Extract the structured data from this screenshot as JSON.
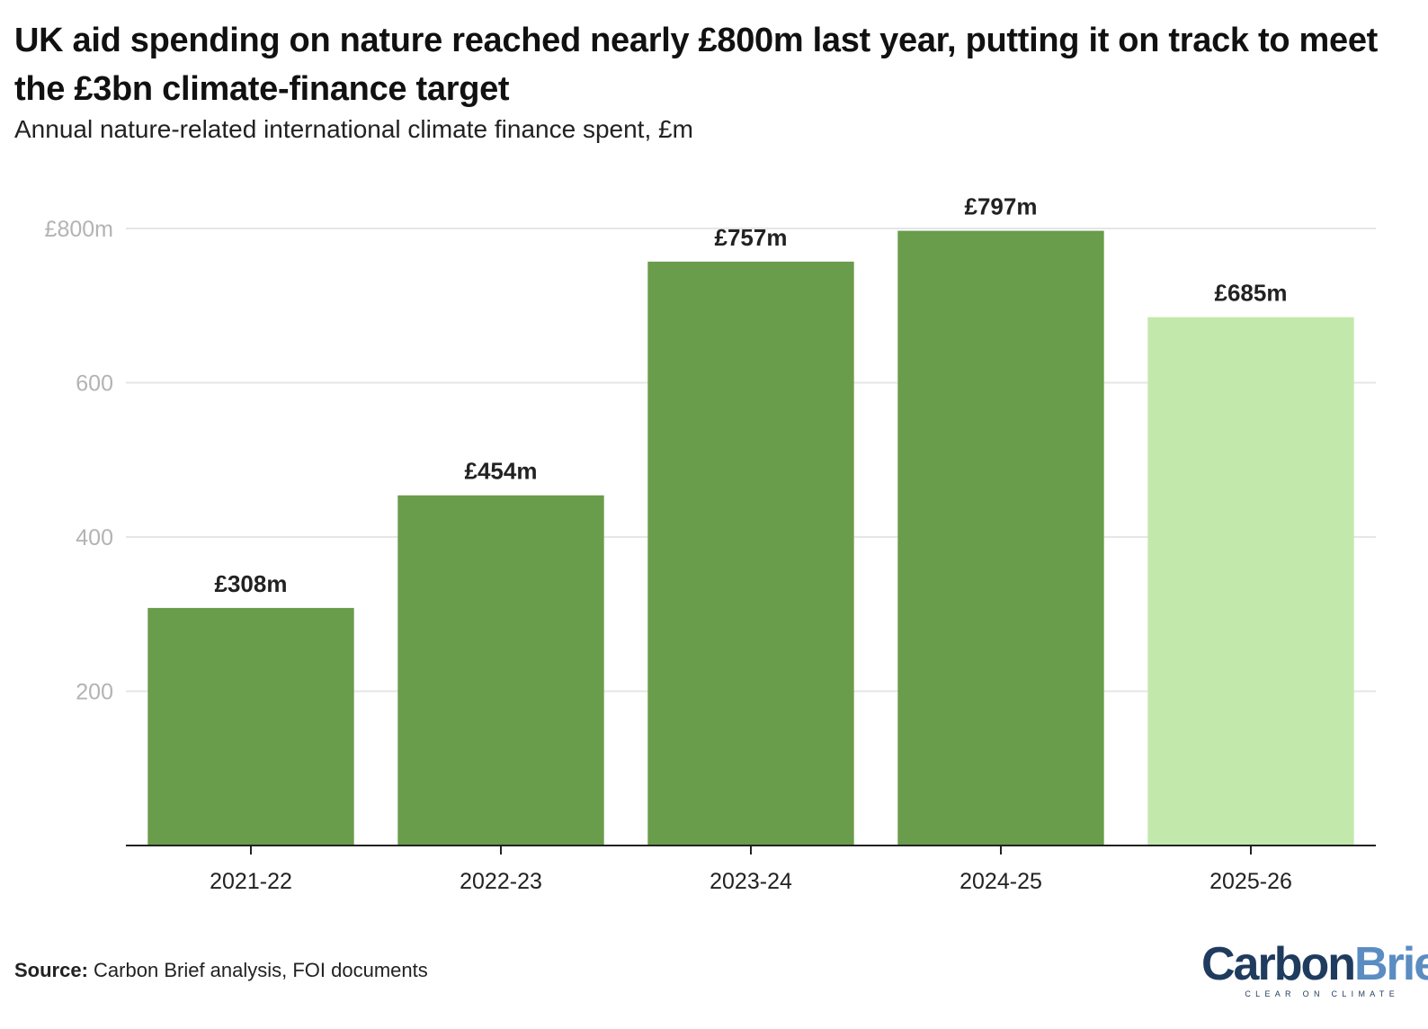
{
  "chart_data": {
    "type": "bar",
    "title": "UK aid spending on nature reached nearly £800m last year, putting it on track to meet the £3bn climate-finance target",
    "subtitle": "Annual nature-related international climate finance spent, £m",
    "categories": [
      "2021-22",
      "2022-23",
      "2023-24",
      "2024-25",
      "2025-26"
    ],
    "values": [
      308,
      454,
      757,
      797,
      685
    ],
    "data_labels": [
      "£308m",
      "£454m",
      "£757m",
      "£797m",
      "£685m"
    ],
    "ylim": [
      0,
      800
    ],
    "yticks": [
      200,
      400,
      600,
      800
    ],
    "ytick_labels": [
      "200",
      "400",
      "600",
      "£800m"
    ],
    "grid": true,
    "xlabel": "",
    "ylabel": "",
    "colors": {
      "bar": "#699c4b",
      "bar_highlight": "#c3e8ac",
      "grid": "#e6e6e6",
      "axis": "#222222",
      "tick_label": "#b3b3b3",
      "category_label": "#222222",
      "data_label": "#222222"
    },
    "highlight_index": 4
  },
  "source": {
    "label": "Source:",
    "text": "Carbon Brief analysis, FOI documents"
  },
  "logo": {
    "word_carbon": "Carbon",
    "word_brief": "Brief",
    "tagline": "CLEAR ON CLIMATE"
  }
}
